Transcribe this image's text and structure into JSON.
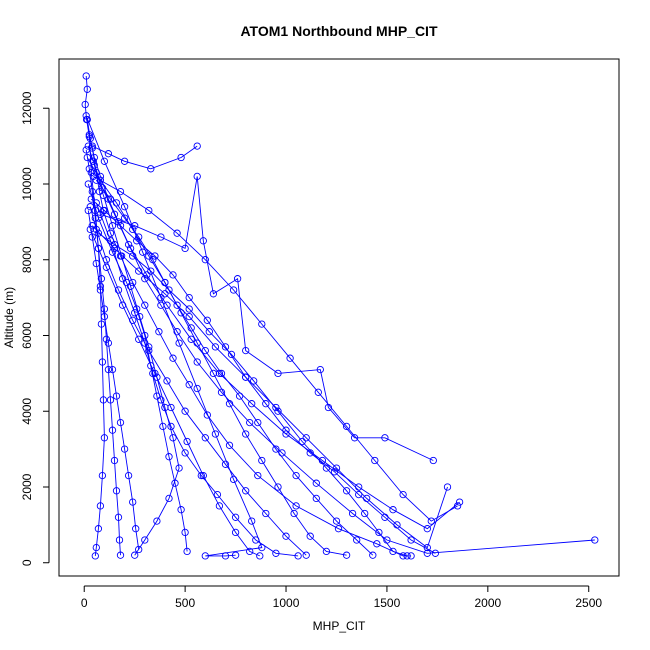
{
  "chart_data": {
    "type": "line",
    "title": "ATOM1 Northbound MHP_CIT",
    "xlabel": "MHP_CIT",
    "ylabel": "Altitude (m)",
    "xlim": [
      -125,
      2650
    ],
    "ylim": [
      -350,
      13300
    ],
    "x_ticks": [
      0,
      500,
      1000,
      1500,
      2000,
      2500
    ],
    "y_ticks": [
      0,
      2000,
      4000,
      6000,
      8000,
      10000,
      12000
    ],
    "grid": false,
    "legend": "none",
    "series_color": "#0000ff",
    "marker": "open-circle",
    "series": [
      {
        "points": [
          [
            10,
            12850
          ],
          [
            15,
            12500
          ],
          [
            5,
            12100
          ],
          [
            12,
            11700
          ],
          [
            25,
            11250
          ],
          [
            40,
            10950
          ],
          [
            60,
            10300
          ],
          [
            75,
            9800
          ],
          [
            95,
            9300
          ],
          [
            130,
            8700
          ],
          [
            180,
            8100
          ],
          [
            240,
            7400
          ],
          [
            300,
            6800
          ],
          [
            370,
            6100
          ],
          [
            440,
            5400
          ],
          [
            520,
            4700
          ],
          [
            610,
            3900
          ],
          [
            720,
            3100
          ],
          [
            860,
            2300
          ],
          [
            1050,
            1500
          ],
          [
            1260,
            900
          ],
          [
            1450,
            500
          ],
          [
            1580,
            180
          ],
          [
            1620,
            180
          ]
        ]
      },
      {
        "points": [
          [
            15,
            11700
          ],
          [
            30,
            11200
          ],
          [
            50,
            10700
          ],
          [
            80,
            10200
          ],
          [
            120,
            9600
          ],
          [
            170,
            9000
          ],
          [
            230,
            8300
          ],
          [
            300,
            7500
          ],
          [
            380,
            6800
          ],
          [
            460,
            6100
          ],
          [
            560,
            5300
          ],
          [
            680,
            4500
          ],
          [
            820,
            3700
          ],
          [
            980,
            2900
          ],
          [
            1150,
            2100
          ],
          [
            1330,
            1300
          ],
          [
            1500,
            600
          ],
          [
            1700,
            250
          ],
          [
            2530,
            600
          ]
        ]
      },
      {
        "points": [
          [
            20,
            11000
          ],
          [
            45,
            10600
          ],
          [
            90,
            9900
          ],
          [
            150,
            9200
          ],
          [
            220,
            8400
          ],
          [
            310,
            7600
          ],
          [
            410,
            6800
          ],
          [
            530,
            5900
          ],
          [
            670,
            5000
          ],
          [
            830,
            4200
          ],
          [
            1000,
            3400
          ],
          [
            1180,
            2700
          ],
          [
            1360,
            2000
          ],
          [
            1530,
            1400
          ],
          [
            1700,
            900
          ],
          [
            1860,
            1600
          ]
        ]
      },
      {
        "points": [
          [
            30,
            9400
          ],
          [
            60,
            8800
          ],
          [
            110,
            8000
          ],
          [
            170,
            7200
          ],
          [
            240,
            6400
          ],
          [
            320,
            5600
          ],
          [
            410,
            4800
          ],
          [
            500,
            4000
          ],
          [
            600,
            3300
          ],
          [
            700,
            2600
          ],
          [
            800,
            1900
          ],
          [
            900,
            1300
          ],
          [
            1000,
            700
          ],
          [
            1100,
            200
          ]
        ]
      },
      {
        "points": [
          [
            10,
            10900
          ],
          [
            25,
            10400
          ],
          [
            40,
            9800
          ],
          [
            55,
            9100
          ],
          [
            70,
            8300
          ],
          [
            85,
            7500
          ],
          [
            100,
            6700
          ],
          [
            110,
            5900
          ],
          [
            120,
            5100
          ],
          [
            130,
            4300
          ],
          [
            140,
            3500
          ],
          [
            150,
            2700
          ],
          [
            160,
            1900
          ],
          [
            170,
            1200
          ],
          [
            175,
            600
          ],
          [
            180,
            200
          ]
        ]
      },
      {
        "points": [
          [
            25,
            11300
          ],
          [
            35,
            10300
          ],
          [
            55,
            9300
          ],
          [
            70,
            8300
          ],
          [
            80,
            7300
          ],
          [
            85,
            6300
          ],
          [
            90,
            5300
          ],
          [
            95,
            4300
          ],
          [
            100,
            3300
          ],
          [
            90,
            2300
          ],
          [
            80,
            1500
          ],
          [
            70,
            900
          ],
          [
            60,
            400
          ],
          [
            55,
            180
          ]
        ]
      },
      {
        "points": [
          [
            40,
            11000
          ],
          [
            120,
            10800
          ],
          [
            200,
            10600
          ],
          [
            330,
            10400
          ],
          [
            480,
            10700
          ],
          [
            560,
            11000
          ]
        ]
      },
      {
        "points": [
          [
            80,
            9200
          ],
          [
            250,
            8900
          ],
          [
            380,
            8600
          ],
          [
            500,
            8300
          ],
          [
            560,
            10200
          ],
          [
            590,
            8500
          ],
          [
            640,
            7100
          ],
          [
            760,
            7500
          ],
          [
            800,
            5600
          ],
          [
            960,
            5000
          ],
          [
            1170,
            5100
          ],
          [
            1210,
            4100
          ],
          [
            1340,
            3300
          ],
          [
            1490,
            3300
          ],
          [
            1730,
            2700
          ]
        ]
      },
      {
        "points": [
          [
            40,
            8900
          ],
          [
            150,
            8300
          ],
          [
            270,
            7700
          ],
          [
            400,
            7100
          ],
          [
            520,
            6500
          ],
          [
            650,
            5700
          ],
          [
            800,
            4900
          ],
          [
            950,
            4100
          ],
          [
            1100,
            3300
          ],
          [
            1250,
            2500
          ],
          [
            1400,
            1700
          ],
          [
            1550,
            1000
          ],
          [
            1700,
            400
          ],
          [
            1800,
            2000
          ]
        ]
      },
      {
        "points": [
          [
            60,
            9500
          ],
          [
            130,
            8500
          ],
          [
            190,
            7500
          ],
          [
            250,
            6600
          ],
          [
            300,
            5800
          ],
          [
            340,
            5000
          ],
          [
            380,
            4300
          ],
          [
            430,
            3600
          ],
          [
            500,
            2900
          ],
          [
            580,
            2300
          ],
          [
            660,
            1800
          ],
          [
            750,
            1200
          ],
          [
            850,
            600
          ],
          [
            950,
            250
          ],
          [
            1060,
            180
          ]
        ]
      },
      {
        "points": [
          [
            20,
            10000
          ],
          [
            70,
            9100
          ],
          [
            140,
            8200
          ],
          [
            210,
            7400
          ],
          [
            260,
            6700
          ],
          [
            300,
            6000
          ],
          [
            330,
            5200
          ],
          [
            360,
            4400
          ],
          [
            390,
            3600
          ],
          [
            420,
            2800
          ],
          [
            450,
            2100
          ],
          [
            480,
            1400
          ],
          [
            500,
            800
          ],
          [
            510,
            300
          ]
        ]
      },
      {
        "points": [
          [
            35,
            9600
          ],
          [
            100,
            9300
          ],
          [
            180,
            8900
          ],
          [
            260,
            8500
          ],
          [
            350,
            8100
          ],
          [
            440,
            7600
          ],
          [
            520,
            7000
          ],
          [
            610,
            6400
          ],
          [
            700,
            5700
          ],
          [
            800,
            4900
          ],
          [
            900,
            4200
          ],
          [
            1000,
            3500
          ],
          [
            1120,
            2900
          ],
          [
            1240,
            2400
          ],
          [
            1360,
            1800
          ],
          [
            1490,
            1200
          ],
          [
            1620,
            600
          ],
          [
            1740,
            250
          ]
        ]
      },
      {
        "points": [
          [
            15,
            10700
          ],
          [
            80,
            10100
          ],
          [
            160,
            9500
          ],
          [
            240,
            8800
          ],
          [
            320,
            8100
          ],
          [
            400,
            7400
          ],
          [
            480,
            6600
          ],
          [
            560,
            5800
          ],
          [
            640,
            5000
          ],
          [
            720,
            4200
          ],
          [
            800,
            3400
          ],
          [
            880,
            2700
          ],
          [
            960,
            2000
          ],
          [
            1040,
            1300
          ],
          [
            1120,
            700
          ],
          [
            1200,
            300
          ],
          [
            1300,
            200
          ]
        ]
      },
      {
        "points": [
          [
            10,
            11800
          ],
          [
            100,
            10600
          ],
          [
            200,
            9400
          ],
          [
            290,
            8200
          ],
          [
            380,
            7000
          ],
          [
            470,
            5800
          ],
          [
            560,
            4600
          ],
          [
            650,
            3400
          ],
          [
            740,
            2200
          ],
          [
            830,
            1100
          ],
          [
            880,
            400
          ],
          [
            600,
            180
          ],
          [
            700,
            180
          ],
          [
            750,
            200
          ]
        ]
      },
      {
        "points": [
          [
            50,
            10500
          ],
          [
            95,
            9700
          ],
          [
            140,
            8900
          ],
          [
            185,
            8100
          ],
          [
            230,
            7300
          ],
          [
            275,
            6500
          ],
          [
            320,
            5700
          ],
          [
            360,
            4900
          ],
          [
            400,
            4100
          ],
          [
            440,
            3300
          ],
          [
            470,
            2500
          ],
          [
            420,
            1700
          ],
          [
            360,
            1100
          ],
          [
            300,
            600
          ],
          [
            250,
            200
          ]
        ]
      },
      {
        "points": [
          [
            70,
            8700
          ],
          [
            150,
            8400
          ],
          [
            240,
            8100
          ],
          [
            330,
            7700
          ],
          [
            420,
            7200
          ],
          [
            520,
            6700
          ],
          [
            620,
            6100
          ],
          [
            730,
            5500
          ],
          [
            840,
            4800
          ],
          [
            960,
            4000
          ],
          [
            1080,
            3200
          ],
          [
            1200,
            2500
          ],
          [
            1300,
            1900
          ],
          [
            1390,
            1300
          ],
          [
            1460,
            800
          ],
          [
            1530,
            300
          ],
          [
            1600,
            180
          ]
        ]
      },
      {
        "points": [
          [
            30,
            8800
          ],
          [
            110,
            7800
          ],
          [
            190,
            6800
          ],
          [
            270,
            5900
          ],
          [
            350,
            5000
          ],
          [
            430,
            4100
          ],
          [
            510,
            3200
          ],
          [
            590,
            2300
          ],
          [
            670,
            1500
          ],
          [
            750,
            800
          ],
          [
            820,
            300
          ],
          [
            870,
            180
          ]
        ]
      },
      {
        "points": [
          [
            60,
            10100
          ],
          [
            130,
            9600
          ],
          [
            200,
            9100
          ],
          [
            270,
            8600
          ],
          [
            340,
            8000
          ],
          [
            400,
            7400
          ],
          [
            460,
            6800
          ],
          [
            530,
            6200
          ],
          [
            600,
            5600
          ],
          [
            680,
            5000
          ],
          [
            770,
            4400
          ],
          [
            860,
            3700
          ],
          [
            950,
            3000
          ],
          [
            1050,
            2300
          ],
          [
            1150,
            1700
          ],
          [
            1250,
            1100
          ],
          [
            1350,
            600
          ],
          [
            1430,
            200
          ]
        ]
      },
      {
        "points": [
          [
            20,
            9300
          ],
          [
            40,
            8600
          ],
          [
            60,
            7900
          ],
          [
            80,
            7200
          ],
          [
            100,
            6500
          ],
          [
            120,
            5800
          ],
          [
            140,
            5100
          ],
          [
            160,
            4400
          ],
          [
            180,
            3700
          ],
          [
            200,
            3000
          ],
          [
            220,
            2300
          ],
          [
            240,
            1600
          ],
          [
            255,
            900
          ],
          [
            270,
            350
          ]
        ]
      },
      {
        "points": [
          [
            45,
            10200
          ],
          [
            180,
            9800
          ],
          [
            320,
            9300
          ],
          [
            460,
            8700
          ],
          [
            600,
            8000
          ],
          [
            740,
            7200
          ],
          [
            880,
            6300
          ],
          [
            1020,
            5400
          ],
          [
            1160,
            4500
          ],
          [
            1300,
            3600
          ],
          [
            1440,
            2700
          ],
          [
            1580,
            1800
          ],
          [
            1720,
            1100
          ],
          [
            1850,
            1500
          ]
        ]
      }
    ]
  }
}
